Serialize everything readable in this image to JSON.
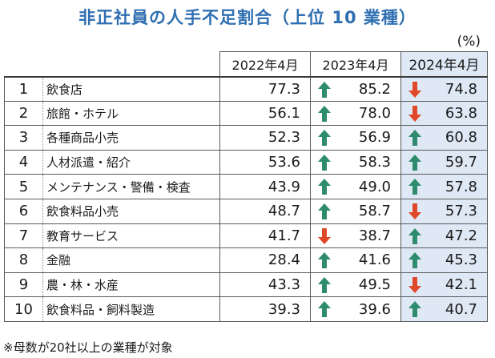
{
  "title": "非正社員の人手不足割合（上位 10 業種）",
  "unit": "(%)",
  "note": "※母数が20社以上の業種が対象",
  "columns": [
    "2022年4月",
    "2023年4月",
    "2024年4月"
  ],
  "colors": {
    "title": "#2f6fb1",
    "up": "#2e8b6e",
    "down": "#e0482a",
    "highlight": "#dfe8f5"
  },
  "chart_data": {
    "type": "table",
    "title": "非正社員の人手不足割合（上位 10 業種）",
    "unit": "(%)",
    "columns": [
      "2022年4月",
      "2023年4月",
      "2024年4月"
    ],
    "rows": [
      {
        "rank": "1",
        "industry": "飲食店",
        "v2022": "77.3",
        "v2023": "85.2",
        "t2023": "up",
        "v2024": "74.8",
        "t2024": "down"
      },
      {
        "rank": "2",
        "industry": "旅館・ホテル",
        "v2022": "56.1",
        "v2023": "78.0",
        "t2023": "up",
        "v2024": "63.8",
        "t2024": "down"
      },
      {
        "rank": "3",
        "industry": "各種商品小売",
        "v2022": "52.3",
        "v2023": "56.9",
        "t2023": "up",
        "v2024": "60.8",
        "t2024": "up"
      },
      {
        "rank": "4",
        "industry": "人材派遣・紹介",
        "v2022": "53.6",
        "v2023": "58.3",
        "t2023": "up",
        "v2024": "59.7",
        "t2024": "up"
      },
      {
        "rank": "5",
        "industry": "メンテナンス・警備・検査",
        "v2022": "43.9",
        "v2023": "49.0",
        "t2023": "up",
        "v2024": "57.8",
        "t2024": "up"
      },
      {
        "rank": "6",
        "industry": "飲食料品小売",
        "v2022": "48.7",
        "v2023": "58.7",
        "t2023": "up",
        "v2024": "57.3",
        "t2024": "down"
      },
      {
        "rank": "7",
        "industry": "教育サービス",
        "v2022": "41.7",
        "v2023": "38.7",
        "t2023": "down",
        "v2024": "47.2",
        "t2024": "up"
      },
      {
        "rank": "8",
        "industry": "金融",
        "v2022": "28.4",
        "v2023": "41.6",
        "t2023": "up",
        "v2024": "45.3",
        "t2024": "up"
      },
      {
        "rank": "9",
        "industry": "農・林・水産",
        "v2022": "43.3",
        "v2023": "49.5",
        "t2023": "up",
        "v2024": "42.1",
        "t2024": "down"
      },
      {
        "rank": "10",
        "industry": "飲食料品・飼料製造",
        "v2022": "39.3",
        "v2023": "39.6",
        "t2023": "up",
        "v2024": "40.7",
        "t2024": "up"
      }
    ]
  }
}
